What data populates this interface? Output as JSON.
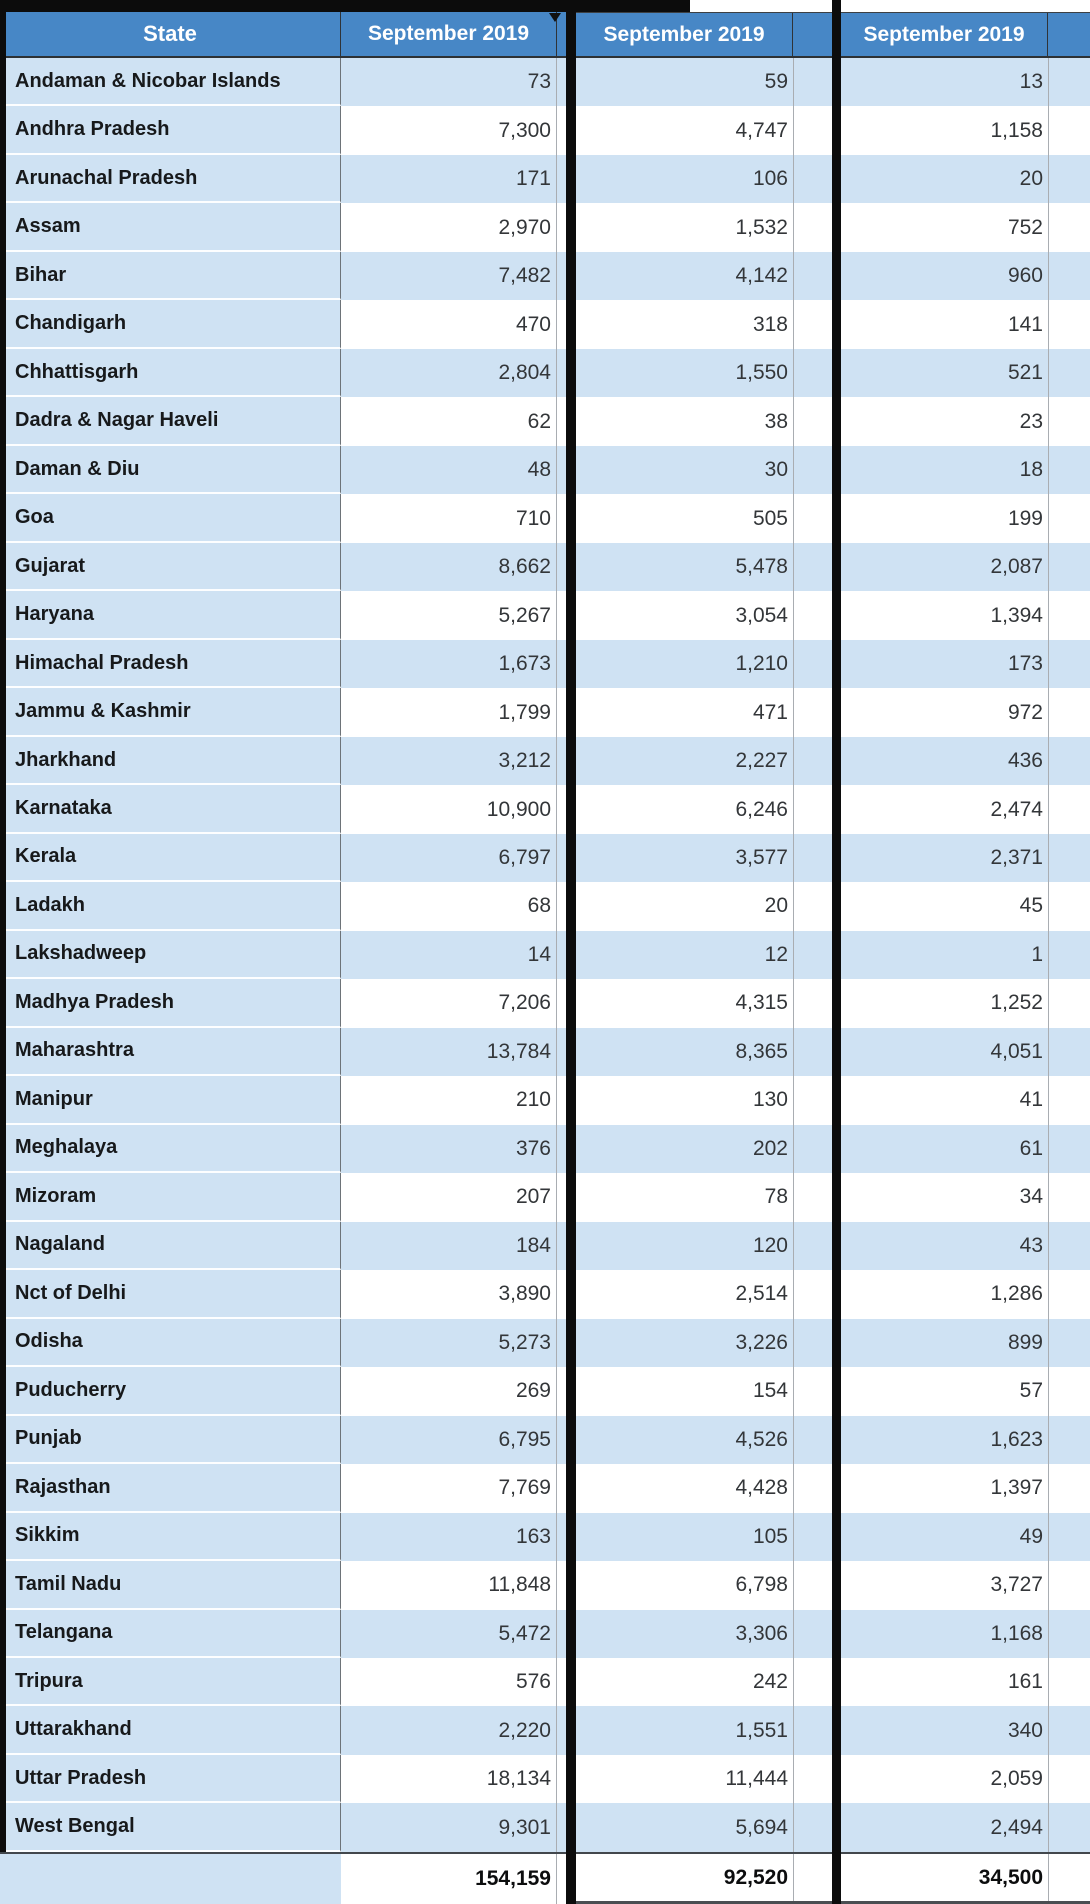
{
  "table": {
    "state_header": "State",
    "columns": [
      "September 2019",
      "September 2019",
      "September 2019"
    ],
    "rows": [
      {
        "state": "Andaman & Nicobar Islands",
        "values": [
          "73",
          "59",
          "13"
        ]
      },
      {
        "state": "Andhra Pradesh",
        "values": [
          "7,300",
          "4,747",
          "1,158"
        ]
      },
      {
        "state": "Arunachal Pradesh",
        "values": [
          "171",
          "106",
          "20"
        ]
      },
      {
        "state": "Assam",
        "values": [
          "2,970",
          "1,532",
          "752"
        ]
      },
      {
        "state": "Bihar",
        "values": [
          "7,482",
          "4,142",
          "960"
        ]
      },
      {
        "state": "Chandigarh",
        "values": [
          "470",
          "318",
          "141"
        ]
      },
      {
        "state": "Chhattisgarh",
        "values": [
          "2,804",
          "1,550",
          "521"
        ]
      },
      {
        "state": "Dadra & Nagar Haveli",
        "values": [
          "62",
          "38",
          "23"
        ]
      },
      {
        "state": "Daman & Diu",
        "values": [
          "48",
          "30",
          "18"
        ]
      },
      {
        "state": "Goa",
        "values": [
          "710",
          "505",
          "199"
        ]
      },
      {
        "state": "Gujarat",
        "values": [
          "8,662",
          "5,478",
          "2,087"
        ]
      },
      {
        "state": "Haryana",
        "values": [
          "5,267",
          "3,054",
          "1,394"
        ]
      },
      {
        "state": "Himachal Pradesh",
        "values": [
          "1,673",
          "1,210",
          "173"
        ]
      },
      {
        "state": "Jammu & Kashmir",
        "values": [
          "1,799",
          "471",
          "972"
        ]
      },
      {
        "state": "Jharkhand",
        "values": [
          "3,212",
          "2,227",
          "436"
        ]
      },
      {
        "state": "Karnataka",
        "values": [
          "10,900",
          "6,246",
          "2,474"
        ]
      },
      {
        "state": "Kerala",
        "values": [
          "6,797",
          "3,577",
          "2,371"
        ]
      },
      {
        "state": "Ladakh",
        "values": [
          "68",
          "20",
          "45"
        ]
      },
      {
        "state": "Lakshadweep",
        "values": [
          "14",
          "12",
          "1"
        ]
      },
      {
        "state": "Madhya Pradesh",
        "values": [
          "7,206",
          "4,315",
          "1,252"
        ]
      },
      {
        "state": "Maharashtra",
        "values": [
          "13,784",
          "8,365",
          "4,051"
        ]
      },
      {
        "state": "Manipur",
        "values": [
          "210",
          "130",
          "41"
        ]
      },
      {
        "state": "Meghalaya",
        "values": [
          "376",
          "202",
          "61"
        ]
      },
      {
        "state": "Mizoram",
        "values": [
          "207",
          "78",
          "34"
        ]
      },
      {
        "state": "Nagaland",
        "values": [
          "184",
          "120",
          "43"
        ]
      },
      {
        "state": "Nct of Delhi",
        "values": [
          "3,890",
          "2,514",
          "1,286"
        ]
      },
      {
        "state": "Odisha",
        "values": [
          "5,273",
          "3,226",
          "899"
        ]
      },
      {
        "state": "Puducherry",
        "values": [
          "269",
          "154",
          "57"
        ]
      },
      {
        "state": "Punjab",
        "values": [
          "6,795",
          "4,526",
          "1,623"
        ]
      },
      {
        "state": "Rajasthan",
        "values": [
          "7,769",
          "4,428",
          "1,397"
        ]
      },
      {
        "state": "Sikkim",
        "values": [
          "163",
          "105",
          "49"
        ]
      },
      {
        "state": "Tamil Nadu",
        "values": [
          "11,848",
          "6,798",
          "3,727"
        ]
      },
      {
        "state": "Telangana",
        "values": [
          "5,472",
          "3,306",
          "1,168"
        ]
      },
      {
        "state": "Tripura",
        "values": [
          "576",
          "242",
          "161"
        ]
      },
      {
        "state": "Uttarakhand",
        "values": [
          "2,220",
          "1,551",
          "340"
        ]
      },
      {
        "state": "Uttar Pradesh",
        "values": [
          "18,134",
          "11,444",
          "2,059"
        ]
      },
      {
        "state": "West Bengal",
        "values": [
          "9,301",
          "5,694",
          "2,494"
        ]
      }
    ],
    "totals": [
      "154,159",
      "92,520",
      "34,500"
    ]
  },
  "colors": {
    "header_blue": "#4787c6",
    "row_blue": "#cfe2f3",
    "row_white": "#ffffff",
    "divider_black": "#0c0c0c",
    "state_text": "#17191b",
    "value_text": "#333639"
  }
}
